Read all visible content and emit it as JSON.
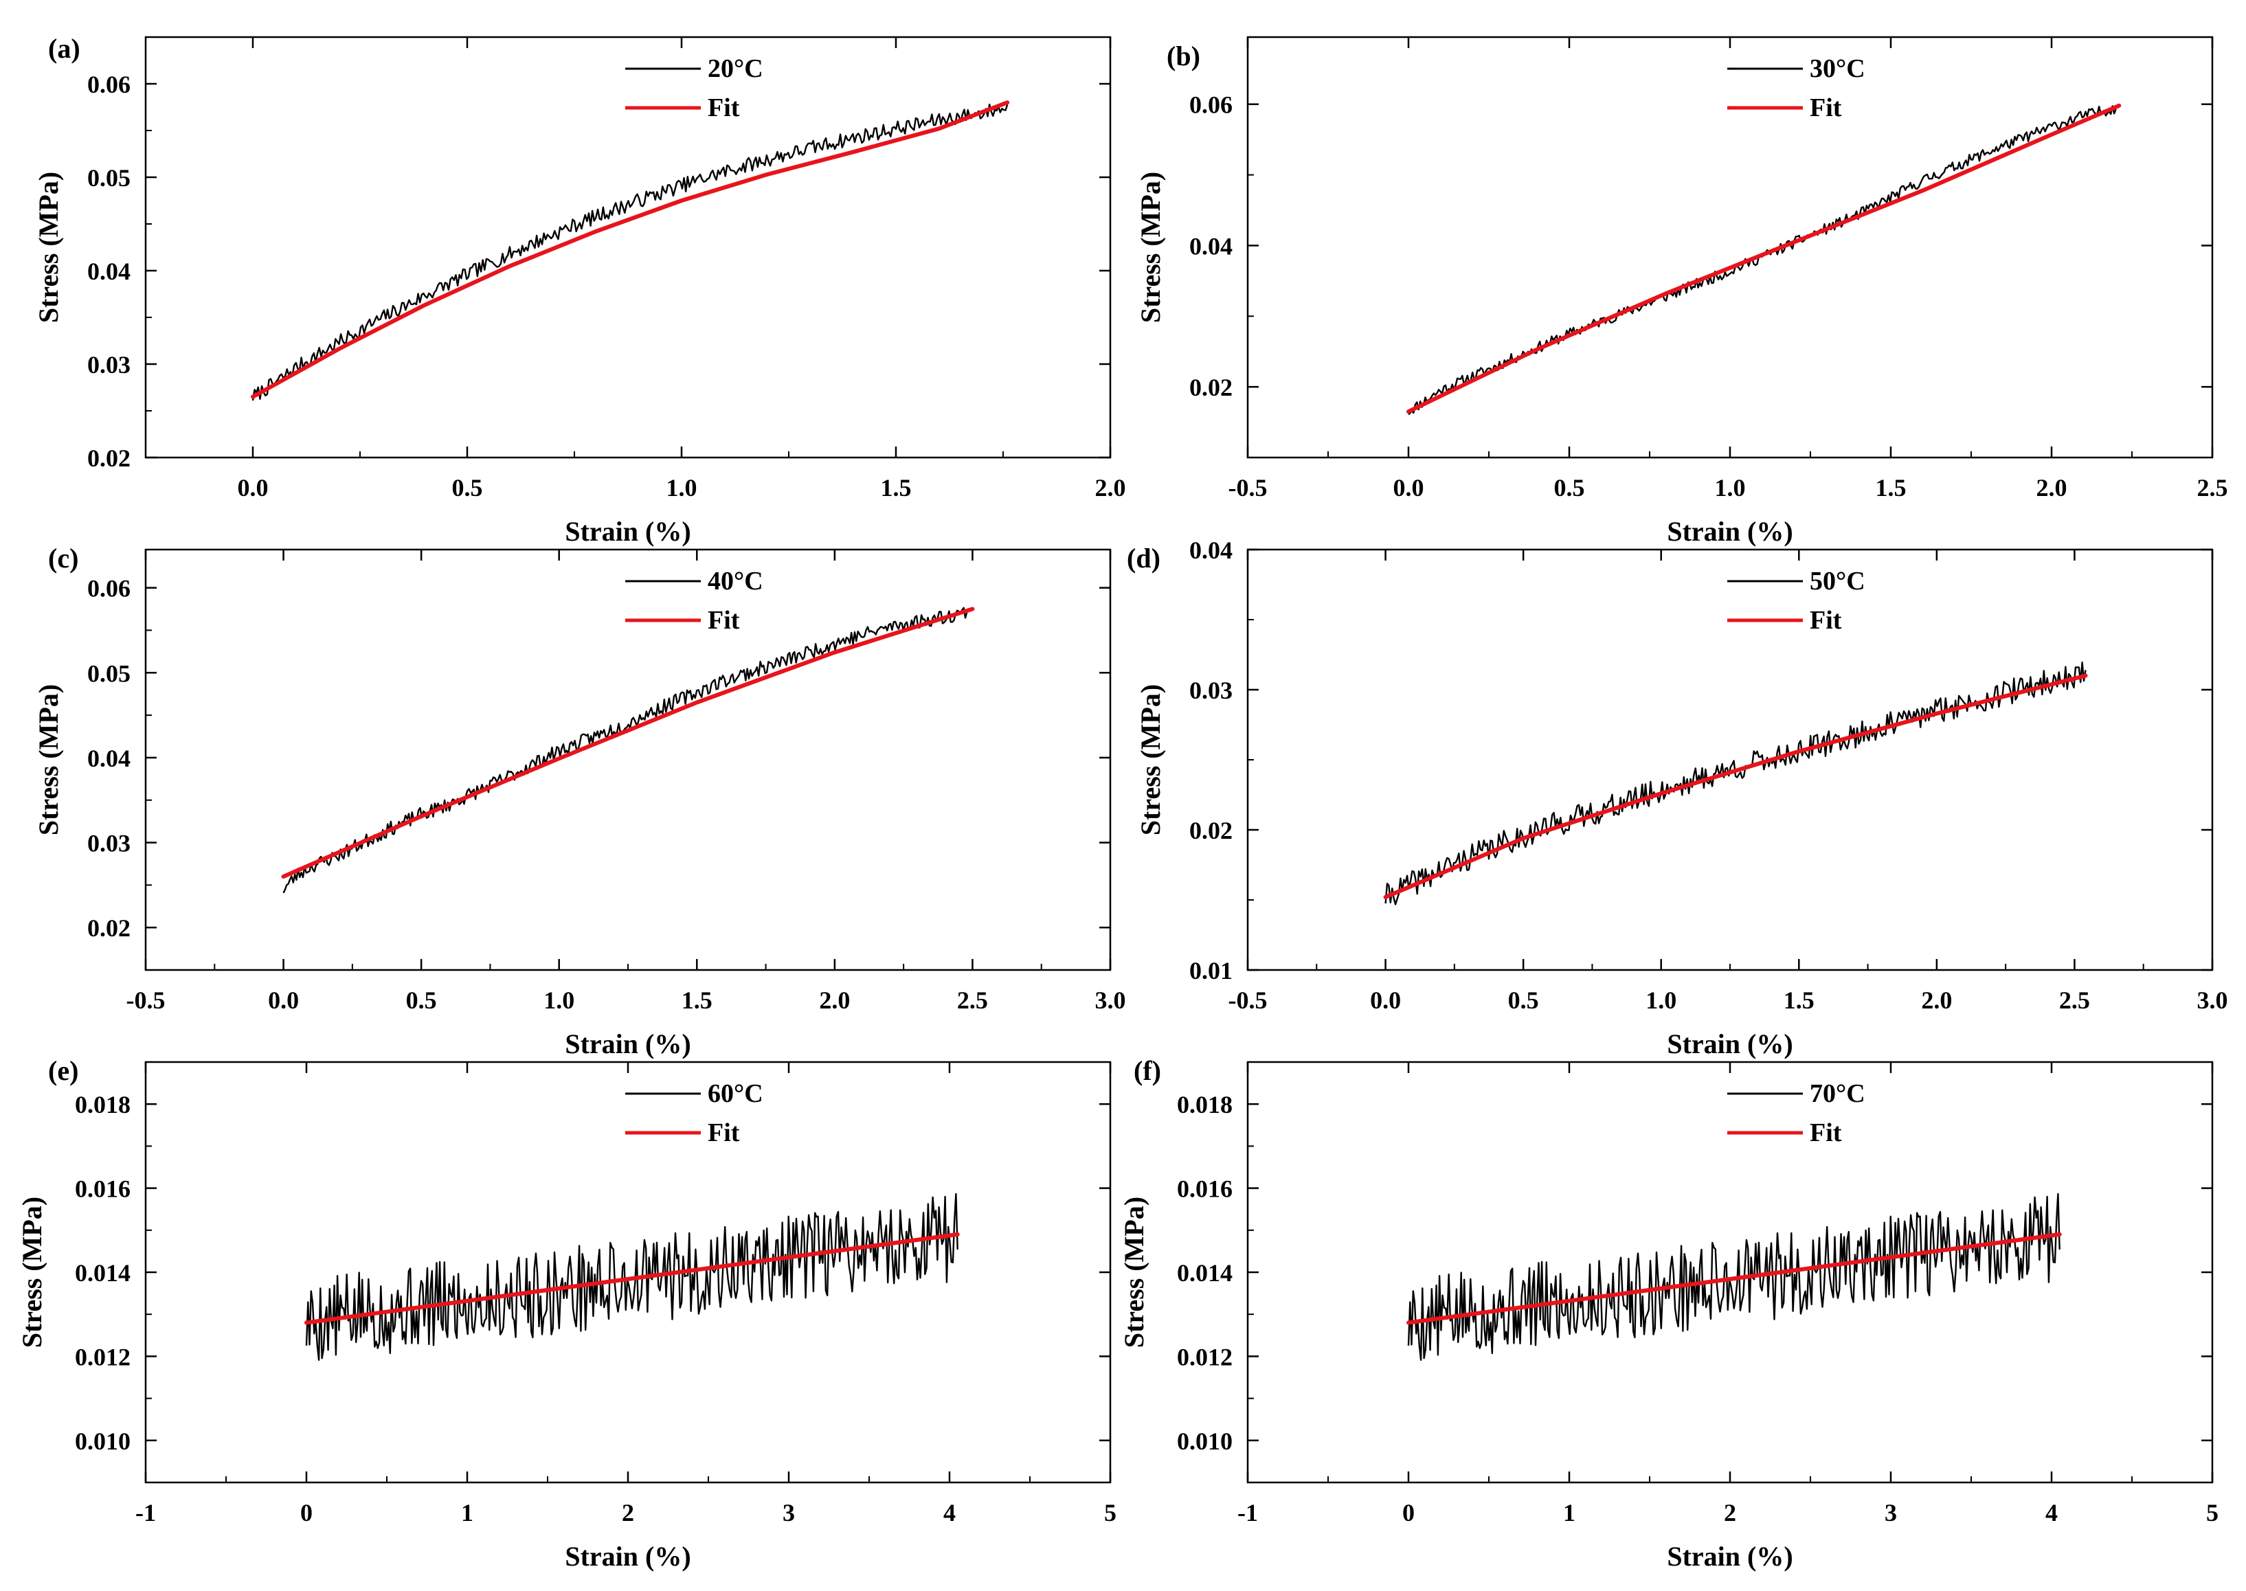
{
  "colors": {
    "data": "#000000",
    "fit": "#e8141c",
    "axis": "#000000",
    "background": "#ffffff"
  },
  "chart_data": [
    {
      "panel": "(a)",
      "type": "line",
      "xlabel": "Strain (%)",
      "ylabel": "Stress (MPa)",
      "xlim": [
        -0.25,
        2.0
      ],
      "ylim": [
        0.02,
        0.065
      ],
      "xticks": [
        0.0,
        0.5,
        1.0,
        1.5,
        2.0
      ],
      "xtick_labels": [
        "0.0",
        "0.5",
        "1.0",
        "1.5",
        "2.0"
      ],
      "yticks": [
        0.02,
        0.03,
        0.04,
        0.05,
        0.06
      ],
      "ytick_labels": [
        "0.02",
        "0.03",
        "0.04",
        "0.05",
        "0.06"
      ],
      "legend": [
        "20°C",
        "Fit"
      ],
      "legend_position": "top-center",
      "series": [
        {
          "name": "20°C",
          "x": [
            0.0,
            0.05,
            0.1,
            0.2,
            0.3,
            0.4,
            0.5,
            0.6,
            0.7,
            0.8,
            0.9,
            1.0,
            1.1,
            1.2,
            1.3,
            1.4,
            1.5,
            1.6,
            1.7,
            1.76
          ],
          "y": [
            0.0265,
            0.0279,
            0.0296,
            0.0323,
            0.0349,
            0.0373,
            0.0396,
            0.0418,
            0.0439,
            0.0458,
            0.0475,
            0.0491,
            0.0506,
            0.0519,
            0.0531,
            0.0542,
            0.0552,
            0.0561,
            0.0569,
            0.0575
          ],
          "noise": 0.0012,
          "seed": 7
        },
        {
          "name": "Fit",
          "x": [
            0.0,
            0.2,
            0.4,
            0.6,
            0.8,
            1.0,
            1.2,
            1.4,
            1.6,
            1.76
          ],
          "y": [
            0.0265,
            0.0316,
            0.0363,
            0.0405,
            0.0442,
            0.0475,
            0.0503,
            0.0527,
            0.0552,
            0.058
          ]
        }
      ]
    },
    {
      "panel": "(b)",
      "type": "line",
      "xlabel": "Strain (%)",
      "ylabel": "Stress (MPa)",
      "xlim": [
        -0.5,
        2.5
      ],
      "ylim": [
        0.01,
        0.0695
      ],
      "xticks": [
        -0.5,
        0.0,
        0.5,
        1.0,
        1.5,
        2.0,
        2.5
      ],
      "xtick_labels": [
        "-0.5",
        "0.0",
        "0.5",
        "1.0",
        "1.5",
        "2.0",
        "2.5"
      ],
      "yticks": [
        0.02,
        0.04,
        0.06
      ],
      "ytick_labels": [
        "0.02",
        "0.04",
        "0.06"
      ],
      "legend": [
        "30°C",
        "Fit"
      ],
      "legend_position": "top-center",
      "series": [
        {
          "name": "30°C",
          "x": [
            0.0,
            0.05,
            0.1,
            0.2,
            0.3,
            0.4,
            0.5,
            0.6,
            0.7,
            0.8,
            0.9,
            1.0,
            1.2,
            1.4,
            1.6,
            1.8,
            2.0,
            2.1,
            2.2
          ],
          "y": [
            0.0165,
            0.018,
            0.0195,
            0.0215,
            0.0235,
            0.0255,
            0.0275,
            0.0293,
            0.031,
            0.0328,
            0.0346,
            0.0364,
            0.0404,
            0.0444,
            0.0492,
            0.0532,
            0.0568,
            0.0584,
            0.0595
          ],
          "noise": 0.0012,
          "seed": 11
        },
        {
          "name": "Fit",
          "x": [
            0.0,
            0.4,
            0.8,
            1.2,
            1.6,
            2.0,
            2.21
          ],
          "y": [
            0.0165,
            0.0253,
            0.0332,
            0.0405,
            0.0478,
            0.0557,
            0.0598
          ]
        }
      ]
    },
    {
      "panel": "(c)",
      "type": "line",
      "xlabel": "Strain (%)",
      "ylabel": "Stress (MPa)",
      "xlim": [
        -0.5,
        3.0
      ],
      "ylim": [
        0.015,
        0.0645
      ],
      "xticks": [
        -0.5,
        0.0,
        0.5,
        1.0,
        1.5,
        2.0,
        2.5,
        3.0
      ],
      "xtick_labels": [
        "-0.5",
        "0.0",
        "0.5",
        "1.0",
        "1.5",
        "2.0",
        "2.5",
        "3.0"
      ],
      "yticks": [
        0.02,
        0.03,
        0.04,
        0.05,
        0.06
      ],
      "ytick_labels": [
        "0.02",
        "0.03",
        "0.04",
        "0.05",
        "0.06"
      ],
      "legend": [
        "40°C",
        "Fit"
      ],
      "legend_position": "top-center",
      "series": [
        {
          "name": "40°C",
          "x": [
            0.0,
            0.05,
            0.1,
            0.2,
            0.3,
            0.4,
            0.5,
            0.6,
            0.8,
            1.0,
            1.2,
            1.4,
            1.6,
            1.8,
            2.0,
            2.2,
            2.4,
            2.48
          ],
          "y": [
            0.0245,
            0.0262,
            0.0272,
            0.0285,
            0.0302,
            0.0318,
            0.0333,
            0.0345,
            0.0375,
            0.0408,
            0.0434,
            0.0463,
            0.0491,
            0.0512,
            0.0535,
            0.0554,
            0.0566,
            0.0572
          ],
          "noise": 0.0013,
          "seed": 23
        },
        {
          "name": "Fit",
          "x": [
            0.0,
            0.5,
            1.0,
            1.5,
            2.0,
            2.5
          ],
          "y": [
            0.026,
            0.0331,
            0.0399,
            0.0465,
            0.0524,
            0.0575
          ]
        }
      ]
    },
    {
      "panel": "(d)",
      "type": "line",
      "xlabel": "Strain (%)",
      "ylabel": "Stress (MPa)",
      "xlim": [
        -0.5,
        3.0
      ],
      "ylim": [
        0.01,
        0.04
      ],
      "xticks": [
        -0.5,
        0.0,
        0.5,
        1.0,
        1.5,
        2.0,
        2.5,
        3.0
      ],
      "xtick_labels": [
        "-0.5",
        "0.0",
        "0.5",
        "1.0",
        "1.5",
        "2.0",
        "2.5",
        "3.0"
      ],
      "yticks": [
        0.01,
        0.02,
        0.03,
        0.04
      ],
      "ytick_labels": [
        "0.01",
        "0.02",
        "0.03",
        "0.04"
      ],
      "legend": [
        "50°C",
        "Fit"
      ],
      "legend_position": "top-center",
      "series": [
        {
          "name": "50°C",
          "x": [
            0.0,
            0.1,
            0.2,
            0.3,
            0.4,
            0.5,
            0.6,
            0.8,
            1.0,
            1.2,
            1.4,
            1.6,
            1.8,
            2.0,
            2.2,
            2.4,
            2.54
          ],
          "y": [
            0.0152,
            0.0162,
            0.0171,
            0.018,
            0.0188,
            0.0196,
            0.0203,
            0.0215,
            0.0228,
            0.024,
            0.0251,
            0.0261,
            0.0273,
            0.0285,
            0.0295,
            0.0305,
            0.0312
          ],
          "noise": 0.0014,
          "seed": 41
        },
        {
          "name": "Fit",
          "x": [
            0.0,
            0.5,
            1.0,
            1.5,
            2.0,
            2.54
          ],
          "y": [
            0.0152,
            0.0194,
            0.0226,
            0.0256,
            0.0283,
            0.031
          ]
        }
      ]
    },
    {
      "panel": "(e)",
      "type": "line",
      "xlabel": "Strain (%)",
      "ylabel": "Stress (MPa)",
      "xlim": [
        -1,
        5
      ],
      "ylim": [
        0.009,
        0.019
      ],
      "xticks": [
        -1,
        0,
        1,
        2,
        3,
        4,
        5
      ],
      "xtick_labels": [
        "-1",
        "0",
        "1",
        "2",
        "3",
        "4",
        "5"
      ],
      "yticks": [
        0.01,
        0.012,
        0.014,
        0.016,
        0.018
      ],
      "ytick_labels": [
        "0.010",
        "0.012",
        "0.014",
        "0.016",
        "0.018"
      ],
      "legend": [
        "60°C",
        "Fit"
      ],
      "legend_position": "top-center",
      "series": [
        {
          "name": "60°C",
          "x": [
            0.0,
            0.5,
            1.0,
            1.5,
            2.0,
            2.5,
            3.0,
            3.5,
            4.0,
            4.05
          ],
          "y": [
            0.0128,
            0.0131,
            0.0133,
            0.0135,
            0.0138,
            0.014,
            0.0143,
            0.0146,
            0.0148,
            0.0149
          ],
          "noise": 0.0016,
          "seed": 5
        },
        {
          "name": "Fit",
          "x": [
            0.0,
            4.05
          ],
          "y": [
            0.0128,
            0.0149
          ]
        }
      ]
    },
    {
      "panel": "(f)",
      "type": "line",
      "xlabel": "Strain (%)",
      "ylabel": "Stress (MPa)",
      "xlim": [
        -1,
        5
      ],
      "ylim": [
        0.009,
        0.019
      ],
      "xticks": [
        -1,
        0,
        1,
        2,
        3,
        4,
        5
      ],
      "xtick_labels": [
        "-1",
        "0",
        "1",
        "2",
        "3",
        "4",
        "5"
      ],
      "yticks": [
        0.01,
        0.012,
        0.014,
        0.016,
        0.018
      ],
      "ytick_labels": [
        "0.010",
        "0.012",
        "0.014",
        "0.016",
        "0.018"
      ],
      "legend": [
        "70°C",
        "Fit"
      ],
      "legend_position": "top-center",
      "series": [
        {
          "name": "70°C",
          "x": [
            0.0,
            0.5,
            1.0,
            1.5,
            2.0,
            2.5,
            3.0,
            3.5,
            4.0,
            4.05
          ],
          "y": [
            0.0128,
            0.0131,
            0.0133,
            0.0135,
            0.0138,
            0.014,
            0.0143,
            0.0146,
            0.0148,
            0.0149
          ],
          "noise": 0.0016,
          "seed": 5
        },
        {
          "name": "Fit",
          "x": [
            0.0,
            4.05
          ],
          "y": [
            0.0128,
            0.0149
          ]
        }
      ]
    }
  ]
}
